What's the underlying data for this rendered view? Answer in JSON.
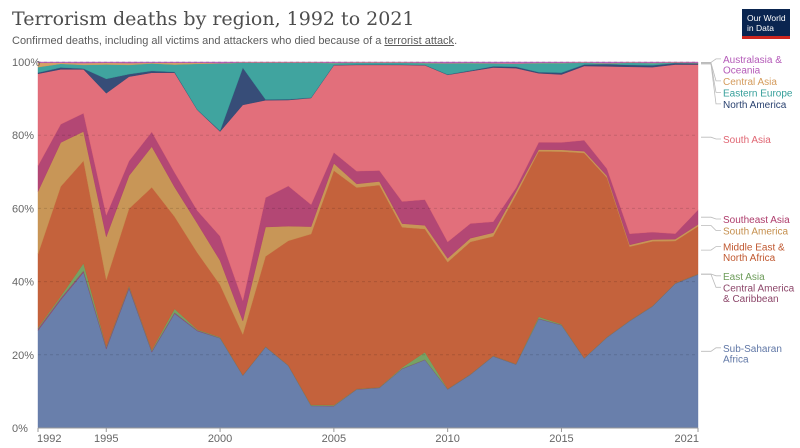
{
  "header": {
    "title": "Terrorism deaths by region, 1992 to 2021",
    "subtitle_prefix": "Confirmed deaths, including all victims and attackers who died because of a ",
    "subtitle_link": "terrorist attack",
    "subtitle_suffix": ".",
    "logo_line1": "Our World",
    "logo_line2": "in Data"
  },
  "chart_data": {
    "type": "area",
    "stacked": true,
    "normalized_percent": true,
    "x": [
      1992,
      1993,
      1994,
      1995,
      1996,
      1997,
      1998,
      1999,
      2000,
      2001,
      2002,
      2003,
      2004,
      2005,
      2006,
      2007,
      2008,
      2009,
      2010,
      2011,
      2012,
      2013,
      2014,
      2015,
      2016,
      2017,
      2018,
      2019,
      2020,
      2021
    ],
    "x_ticks": [
      "1992",
      "1995",
      "2000",
      "2005",
      "2010",
      "2015",
      "2021"
    ],
    "y_ticks": [
      "0%",
      "20%",
      "40%",
      "60%",
      "80%",
      "100%"
    ],
    "ylim": [
      0,
      100
    ],
    "grid": "horizontal-dashed",
    "series": [
      {
        "name": "Sub-Saharan Africa",
        "label_lines": [
          "Sub-Saharan",
          "Africa"
        ],
        "color": "#6077a6",
        "values": [
          26.5,
          35,
          42.5,
          22,
          38,
          20.5,
          31,
          26.5,
          24,
          15.5,
          22,
          17,
          6,
          6,
          10.5,
          11,
          16,
          18.5,
          10.5,
          14.5,
          19.5,
          17.5,
          30,
          28,
          19,
          25,
          29,
          33,
          39.5,
          42
        ]
      },
      {
        "name": "Central America & Caribbean",
        "label_lines": [
          "Central America",
          "& Caribbean"
        ],
        "color": "#8c4569",
        "values": [
          0.5,
          0.5,
          0.5,
          0.5,
          0.5,
          0.3,
          0.3,
          0.2,
          0.1,
          0.1,
          0.1,
          0.1,
          0.1,
          0.1,
          0.1,
          0.1,
          0.1,
          0.1,
          0.1,
          0.1,
          0.1,
          0.1,
          0.1,
          0.1,
          0.1,
          0.1,
          0.1,
          0.1,
          0.1,
          0.1
        ]
      },
      {
        "name": "East Asia",
        "label_lines": [
          "East Asia"
        ],
        "color": "#6d9c5a",
        "values": [
          0.3,
          0.5,
          2,
          0.3,
          0.3,
          0.3,
          1,
          0.2,
          0.2,
          0.1,
          0.1,
          0.1,
          0.2,
          0.2,
          0.1,
          0.1,
          0.3,
          2,
          0.1,
          0.1,
          0.1,
          0.1,
          0.5,
          0.2,
          0.1,
          0.1,
          0.1,
          0.1,
          0.1,
          0.1
        ]
      },
      {
        "name": "Middle East & North Africa",
        "label_lines": [
          "Middle East &",
          "North Africa"
        ],
        "color": "#c05830",
        "values": [
          20,
          30,
          28,
          18.5,
          21,
          44,
          25,
          21,
          14,
          12,
          24.5,
          34,
          46.5,
          64.5,
          55,
          55.5,
          38,
          33.5,
          34.5,
          36,
          32.5,
          46.5,
          45.5,
          47,
          56,
          44,
          20,
          17.5,
          11.5,
          13
        ]
      },
      {
        "name": "South America",
        "label_lines": [
          "South America"
        ],
        "color": "#c58f4d",
        "values": [
          17,
          12,
          8,
          12,
          9,
          11,
          8,
          8,
          6.5,
          4,
          8,
          4,
          2,
          2,
          1,
          1,
          1,
          1,
          1,
          1,
          1,
          1,
          0.5,
          0.5,
          0.5,
          0.5,
          0.5,
          0.5,
          0.5,
          0.5
        ]
      },
      {
        "name": "Southeast Asia",
        "label_lines": [
          "Southeast Asia"
        ],
        "color": "#ae3c6b",
        "values": [
          7,
          5,
          5,
          6,
          4,
          4,
          4,
          3.5,
          6.5,
          6,
          8,
          11,
          6,
          3,
          3.5,
          3,
          6,
          7,
          4.5,
          4,
          3,
          1,
          2,
          2,
          3,
          2,
          3,
          2,
          1.5,
          4
        ]
      },
      {
        "name": "South Asia",
        "label_lines": [
          "South Asia"
        ],
        "color": "#e06673",
        "values": [
          25,
          15,
          12,
          34,
          23,
          16,
          27,
          27.5,
          28,
          58,
          26.5,
          23.5,
          29,
          24,
          29,
          29,
          37,
          36.5,
          45.5,
          41.5,
          42,
          33,
          19,
          18.5,
          20.3,
          28.3,
          45.3,
          44.8,
          46.3,
          39.8
        ]
      },
      {
        "name": "North America",
        "label_lines": [
          "North America"
        ],
        "color": "#2a4270",
        "values": [
          0.3,
          0.5,
          0.2,
          4,
          0.7,
          0.5,
          0.2,
          0.1,
          0.2,
          11,
          0.2,
          0.2,
          0.1,
          0.1,
          0.1,
          0.1,
          0.1,
          0.1,
          0.1,
          0.2,
          0.3,
          0.4,
          0.3,
          0.5,
          0.4,
          0.6,
          0.5,
          0.5,
          0.4,
          0.3
        ]
      },
      {
        "name": "Eastern Europe",
        "label_lines": [
          "Eastern Europe"
        ],
        "color": "#349e99",
        "values": [
          1.5,
          1,
          1,
          4,
          2.5,
          2,
          2,
          12.5,
          18,
          1.5,
          10,
          10,
          9.5,
          0.5,
          0.5,
          0.5,
          0.5,
          0.5,
          3,
          2,
          0.8,
          0.8,
          2.5,
          2.6,
          0.5,
          0.2,
          0.6,
          0.6,
          0.1,
          0.1
        ]
      },
      {
        "name": "Central Asia",
        "label_lines": [
          "Central Asia"
        ],
        "color": "#d49b5c",
        "values": [
          1.2,
          0.3,
          0.5,
          0.5,
          0.5,
          0.2,
          0.5,
          0.3,
          0.1,
          0.1,
          0.1,
          0.1,
          0.1,
          0.1,
          0.1,
          0.1,
          0.1,
          0.1,
          0.1,
          0.1,
          0.1,
          0.1,
          0.1,
          0.1,
          0.1,
          0.1,
          0.1,
          0.1,
          0.1,
          0.1
        ]
      },
      {
        "name": "Australasia & Oceania",
        "label_lines": [
          "Australasia &",
          "Oceania"
        ],
        "color": "#b45ab8",
        "values": [
          0.2,
          0.2,
          0.3,
          0.2,
          0.3,
          0.2,
          0.2,
          0.2,
          0.3,
          0.1,
          0.1,
          0.1,
          0.1,
          0.2,
          0.1,
          0.1,
          0.1,
          0.2,
          0.3,
          0.2,
          0.3,
          0.4,
          0.2,
          0.2,
          0.1,
          0.3,
          0.1,
          0.2,
          0.1,
          0.2
        ]
      }
    ]
  }
}
